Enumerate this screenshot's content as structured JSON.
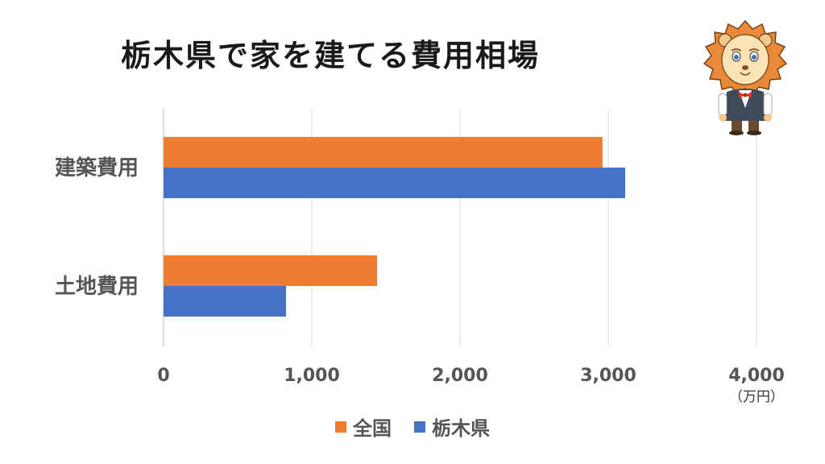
{
  "chart_data": {
    "type": "bar",
    "orientation": "horizontal",
    "title": "栃木県で家を建てる費用相場",
    "categories": [
      "建築費用",
      "土地費用"
    ],
    "series": [
      {
        "name": "全国",
        "color": "#ED7D31",
        "values": [
          2961,
          1440
        ]
      },
      {
        "name": "栃木県",
        "color": "#4472C4",
        "values": [
          3114,
          826
        ]
      }
    ],
    "xlim": [
      0,
      4000
    ],
    "xticks": [
      "0",
      "1,000",
      "2,000",
      "3,000",
      "4,000"
    ],
    "xtick_values": [
      0,
      1000,
      2000,
      3000,
      4000
    ],
    "unit": "（万円）",
    "grid": true,
    "legend_position": "bottom"
  },
  "mascot": {
    "name": "lion-mascot-icon"
  }
}
